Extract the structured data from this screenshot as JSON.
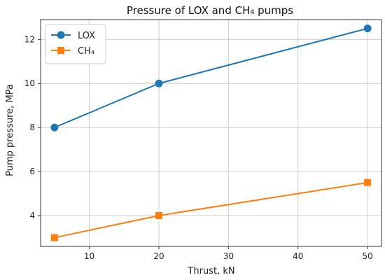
{
  "chart_data": {
    "type": "line",
    "title": "Pressure of LOX and CH₄ pumps",
    "xlabel": "Thrust, kN",
    "ylabel": "Pump pressure, MPa",
    "xlim": [
      3,
      52
    ],
    "ylim": [
      2.6,
      12.9
    ],
    "xticks": [
      10,
      20,
      30,
      40,
      50
    ],
    "yticks": [
      4,
      6,
      8,
      10,
      12
    ],
    "grid": true,
    "legend": "top-left",
    "series": [
      {
        "name": "LOX",
        "color": "#1f77b4",
        "marker": "circle",
        "x": [
          5,
          20,
          50
        ],
        "y": [
          8.0,
          10.0,
          12.5
        ]
      },
      {
        "name": "CH₄",
        "color": "#ff7f0e",
        "marker": "square",
        "x": [
          5,
          20,
          50
        ],
        "y": [
          3.0,
          4.0,
          5.5
        ]
      }
    ]
  }
}
